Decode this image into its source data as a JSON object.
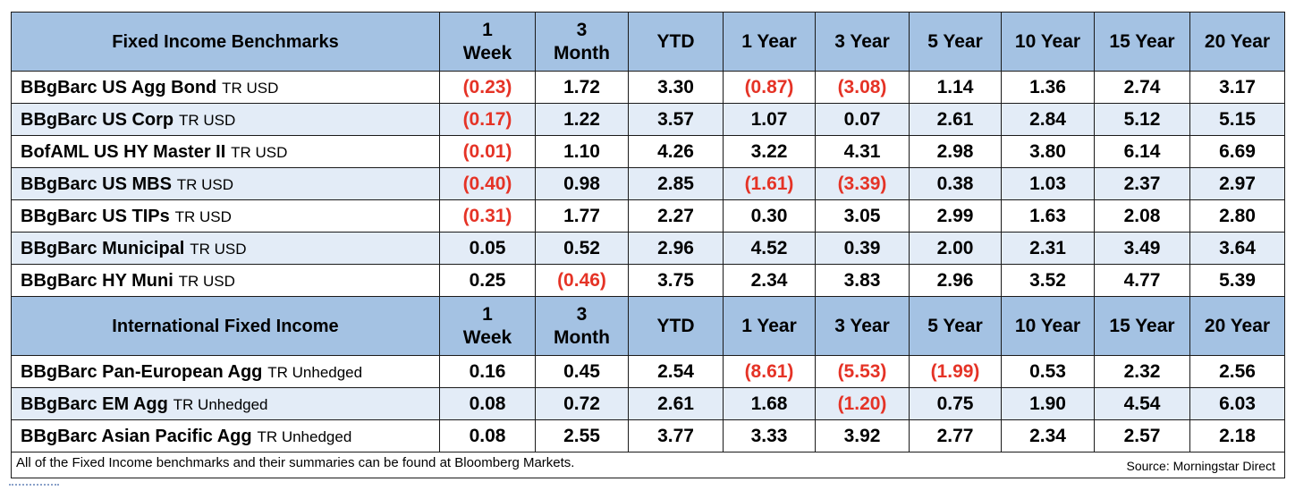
{
  "sections": [
    {
      "title": "Fixed Income Benchmarks",
      "columns": [
        [
          "1",
          "Week"
        ],
        [
          "3",
          "Month"
        ],
        [
          "YTD"
        ],
        [
          "1 Year"
        ],
        [
          "3 Year"
        ],
        [
          "5 Year"
        ],
        [
          "10 Year"
        ],
        [
          "15 Year"
        ],
        [
          "20 Year"
        ]
      ],
      "rows": [
        {
          "name": "BBgBarc US Agg Bond",
          "suffix": "TR USD",
          "values": [
            "(0.23)",
            "1.72",
            "3.30",
            "(0.87)",
            "(3.08)",
            "1.14",
            "1.36",
            "2.74",
            "3.17"
          ]
        },
        {
          "name": "BBgBarc US Corp",
          "suffix": "TR USD",
          "values": [
            "(0.17)",
            "1.22",
            "3.57",
            "1.07",
            "0.07",
            "2.61",
            "2.84",
            "5.12",
            "5.15"
          ]
        },
        {
          "name": "BofAML US HY Master II",
          "suffix": "TR USD",
          "values": [
            "(0.01)",
            "1.10",
            "4.26",
            "3.22",
            "4.31",
            "2.98",
            "3.80",
            "6.14",
            "6.69"
          ]
        },
        {
          "name": "BBgBarc US MBS",
          "suffix": "TR USD",
          "values": [
            "(0.40)",
            "0.98",
            "2.85",
            "(1.61)",
            "(3.39)",
            "0.38",
            "1.03",
            "2.37",
            "2.97"
          ]
        },
        {
          "name": "BBgBarc US TIPs",
          "suffix": "TR USD",
          "values": [
            "(0.31)",
            "1.77",
            "2.27",
            "0.30",
            "3.05",
            "2.99",
            "1.63",
            "2.08",
            "2.80"
          ]
        },
        {
          "name": "BBgBarc Municipal",
          "suffix": "TR USD",
          "values": [
            "0.05",
            "0.52",
            "2.96",
            "4.52",
            "0.39",
            "2.00",
            "2.31",
            "3.49",
            "3.64"
          ]
        },
        {
          "name": "BBgBarc HY Muni",
          "suffix": "TR USD",
          "values": [
            "0.25",
            "(0.46)",
            "3.75",
            "2.34",
            "3.83",
            "2.96",
            "3.52",
            "4.77",
            "5.39"
          ]
        }
      ]
    },
    {
      "title": "International Fixed Income",
      "columns": [
        [
          "1",
          "Week"
        ],
        [
          "3",
          "Month"
        ],
        [
          "YTD"
        ],
        [
          "1 Year"
        ],
        [
          "3 Year"
        ],
        [
          "5 Year"
        ],
        [
          "10 Year"
        ],
        [
          "15 Year"
        ],
        [
          "20 Year"
        ]
      ],
      "rows": [
        {
          "name": "BBgBarc Pan-European Agg",
          "suffix": "TR Unhedged",
          "values": [
            "0.16",
            "0.45",
            "2.54",
            "(8.61)",
            "(5.53)",
            "(1.99)",
            "0.53",
            "2.32",
            "2.56"
          ]
        },
        {
          "name": "BBgBarc EM Agg",
          "suffix": "TR Unhedged",
          "values": [
            "0.08",
            "0.72",
            "2.61",
            "1.68",
            "(1.20)",
            "0.75",
            "1.90",
            "4.54",
            "6.03"
          ]
        },
        {
          "name": "BBgBarc Asian Pacific Agg",
          "suffix": "TR Unhedged",
          "values": [
            "0.08",
            "2.55",
            "3.77",
            "3.33",
            "3.92",
            "2.77",
            "2.34",
            "2.57",
            "2.18"
          ]
        }
      ]
    }
  ],
  "footer": {
    "note": "All of the Fixed Income benchmarks and their summaries can be found at Bloomberg Markets.",
    "source": "Source: Morningstar Direct"
  },
  "colors": {
    "header_fill": "#a4c2e3",
    "alt_row_fill": "#e3ecf7",
    "negative_text": "#e53326",
    "border": "#1a1a1a"
  }
}
